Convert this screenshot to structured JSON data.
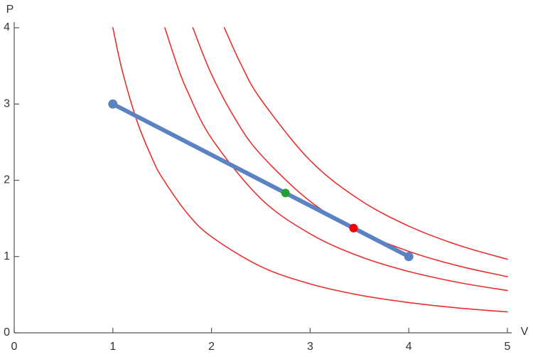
{
  "chart_data": {
    "type": "line",
    "x_label": "V",
    "y_label": "P",
    "xlim": [
      0,
      5
    ],
    "ylim": [
      0,
      4
    ],
    "xticks": [
      0,
      1,
      2,
      3,
      4,
      5
    ],
    "yticks": [
      0,
      1,
      2,
      3,
      4
    ],
    "series": [
      {
        "style": "curve",
        "color": "#e8302f",
        "x": [
          1,
          1.1,
          1.25,
          1.4,
          1.5,
          1.75,
          2,
          2.5,
          3,
          3.5,
          4,
          4.5,
          5
        ],
        "values": [
          4,
          3.413,
          2.757,
          2.283,
          2.035,
          1.574,
          1.26,
          0.869,
          0.641,
          0.495,
          0.397,
          0.326,
          0.274
        ]
      },
      {
        "style": "curve",
        "color": "#e8302f",
        "x": [
          1.527,
          1.65,
          1.75,
          2,
          2.5,
          3,
          3.5,
          4,
          4.5,
          5
        ],
        "values": [
          4,
          3.516,
          3.186,
          2.551,
          1.759,
          1.298,
          1.003,
          0.804,
          0.661,
          0.554
        ]
      },
      {
        "style": "curve",
        "color": "#e8302f",
        "x": [
          1.811,
          2,
          2.25,
          2.5,
          3,
          3.5,
          4,
          4.5,
          5
        ],
        "values": [
          4,
          3.389,
          2.785,
          2.337,
          1.724,
          1.332,
          1.068,
          0.878,
          0.736
        ]
      },
      {
        "style": "curve",
        "color": "#e8302f",
        "x": [
          2.13,
          2.3,
          2.5,
          3,
          3.5,
          4,
          4.5,
          5
        ],
        "values": [
          4,
          3.518,
          3.062,
          2.26,
          1.746,
          1.399,
          1.15,
          0.964
        ]
      },
      {
        "style": "thick",
        "color": "#5b83c1",
        "x": [
          1,
          4
        ],
        "values": [
          3,
          1
        ]
      },
      {
        "style": "marker",
        "color": "#22a033",
        "x": [
          2.75
        ],
        "values": [
          1.833
        ]
      },
      {
        "style": "marker",
        "color": "#f00000",
        "x": [
          3.44
        ],
        "values": [
          1.373
        ]
      }
    ]
  }
}
